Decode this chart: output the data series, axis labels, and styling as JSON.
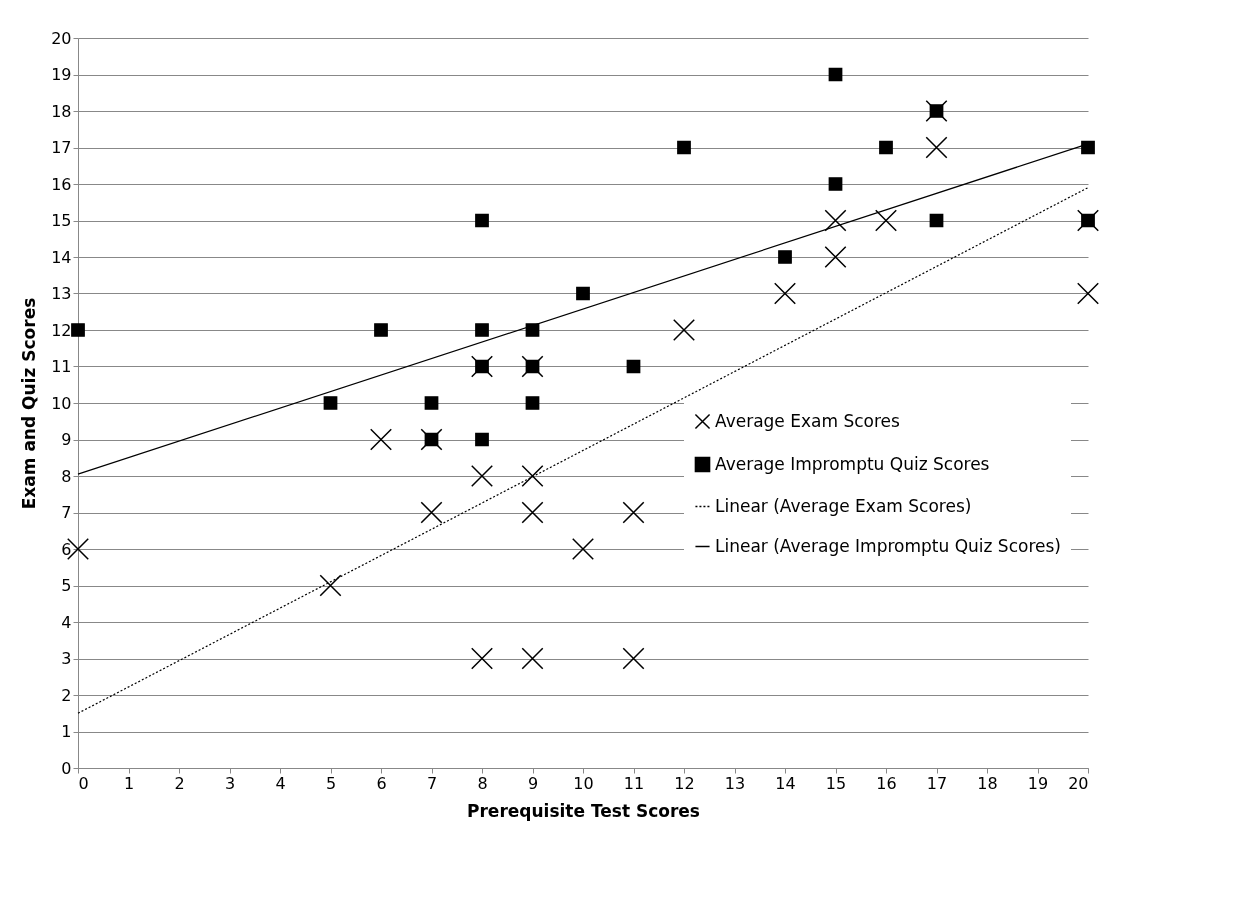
{
  "chart_data": {
    "type": "scatter",
    "xlabel": "Prerequisite Test Scores",
    "ylabel": "Exam and Quiz Scores",
    "series": [
      {
        "name": "Average Exam Scores",
        "type": "scatter",
        "marker": "cross",
        "color": "#000000",
        "x": [
          0,
          5,
          6,
          7,
          7,
          8,
          8,
          8,
          9,
          9,
          9,
          9,
          10,
          11,
          11,
          12,
          14,
          15,
          15,
          16,
          17,
          17,
          20,
          20
        ],
        "values": [
          6,
          5,
          9,
          7,
          9,
          8,
          11,
          3,
          11,
          8,
          7,
          3,
          6,
          7,
          3,
          12,
          13,
          15,
          14,
          15,
          18,
          17,
          15,
          13
        ]
      },
      {
        "name": "Average Impromptu Quiz Scores",
        "type": "scatter",
        "marker": "square",
        "color": "#000000",
        "x": [
          0,
          5,
          6,
          7,
          7,
          8,
          8,
          8,
          8,
          9,
          9,
          9,
          10,
          11,
          12,
          14,
          15,
          15,
          16,
          17,
          17,
          20,
          20
        ],
        "values": [
          12,
          10,
          12,
          10,
          9,
          15,
          12,
          11,
          9,
          12,
          11,
          10,
          13,
          11,
          17,
          14,
          19,
          16,
          17,
          18,
          15,
          17,
          15
        ]
      },
      {
        "name": "Linear (Average Exam Scores)",
        "type": "line",
        "line_style": "dotted",
        "color": "#000000",
        "x": [
          0,
          20
        ],
        "values": [
          1.5,
          15.9
        ]
      },
      {
        "name": "Linear (Average Impromptu Quiz Scores)",
        "type": "line",
        "line_style": "solid",
        "color": "#000000",
        "x": [
          0,
          20
        ],
        "values": [
          8.05,
          17.1
        ]
      }
    ],
    "xlim": [
      0,
      20
    ],
    "xticks": [
      0,
      1,
      2,
      3,
      4,
      5,
      6,
      7,
      8,
      9,
      10,
      11,
      12,
      13,
      14,
      15,
      16,
      17,
      18,
      19,
      20
    ],
    "ylim": [
      0,
      20
    ],
    "yticks": [
      0,
      1,
      2,
      3,
      4,
      5,
      6,
      7,
      8,
      9,
      10,
      11,
      12,
      13,
      14,
      15,
      16,
      17,
      18,
      19,
      20
    ],
    "grid": "y",
    "legend": "right"
  }
}
